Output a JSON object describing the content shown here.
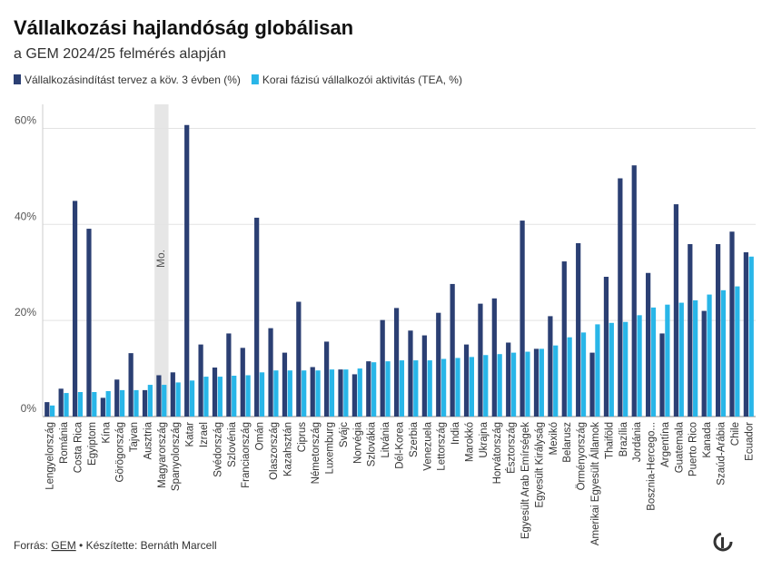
{
  "chart_data": {
    "type": "bar",
    "title": "Vállalkozási hajlandóság globálisan",
    "subtitle": "a GEM 2024/25 felmérés alapján",
    "annotation": "Mo.",
    "source_prefix": "Forrás:",
    "source_link": "GEM",
    "credit": "• Készítette: Bernáth Marcell",
    "categories": [
      "Lengyelország",
      "Románia",
      "Costa Rica",
      "Egyiptom",
      "Kína",
      "Görögország",
      "Tajvan",
      "Ausztria",
      "Magyarország",
      "Spanyolország",
      "Katar",
      "Izrael",
      "Svédország",
      "Szlovénia",
      "Franciaország",
      "Omán",
      "Olaszország",
      "Kazahsztán",
      "Ciprus",
      "Németország",
      "Luxemburg",
      "Svájc",
      "Norvégia",
      "Szlovákia",
      "Litvánia",
      "Dél-Korea",
      "Szerbia",
      "Venezuela",
      "Lettország",
      "India",
      "Marokkó",
      "Ukrajna",
      "Horvátország",
      "Észtország",
      "Egyesült Arab Emírségek",
      "Egyesült Királyság",
      "Mexikó",
      "Belarusz",
      "Örményország",
      "Amerikai Egyesült Államok",
      "Thaiföld",
      "Brazília",
      "Jordánia",
      "Bosznia-Hercego...",
      "Argentína",
      "Guatemala",
      "Puerto Rico",
      "Kanada",
      "Szaúd-Arábia",
      "Chile",
      "Ecuador"
    ],
    "series": [
      {
        "name": "Vállalkozásindítást tervez a köv. 3 évben (%)",
        "color": "#2b3f73",
        "values": [
          3.0,
          5.8,
          44.9,
          39.1,
          3.9,
          7.7,
          13.2,
          5.5,
          8.6,
          9.2,
          60.7,
          15.0,
          10.2,
          17.3,
          14.3,
          41.4,
          18.4,
          13.3,
          23.9,
          10.3,
          15.6,
          9.8,
          8.8,
          11.5,
          20.1,
          22.6,
          17.9,
          16.9,
          21.6,
          27.6,
          15.0,
          23.5,
          24.6,
          15.4,
          40.8,
          14.1,
          20.9,
          32.3,
          36.1,
          13.3,
          29.1,
          49.6,
          52.3,
          29.9,
          17.3,
          44.2,
          35.9,
          22.0,
          35.9,
          38.5,
          34.2
        ]
      },
      {
        "name": "Korai fázisú vállalkozói aktivitás (TEA, %)",
        "color": "#29b6e8",
        "values": [
          2.3,
          4.9,
          5.1,
          5.1,
          5.3,
          5.5,
          5.5,
          6.6,
          6.6,
          7.1,
          7.5,
          8.3,
          8.3,
          8.5,
          8.6,
          9.2,
          9.6,
          9.6,
          9.6,
          9.6,
          9.8,
          9.8,
          10.0,
          11.3,
          11.5,
          11.7,
          11.7,
          11.7,
          12.0,
          12.2,
          12.4,
          12.8,
          13.0,
          13.3,
          13.5,
          14.1,
          14.8,
          16.5,
          17.5,
          19.2,
          19.5,
          19.7,
          21.1,
          22.7,
          23.3,
          23.7,
          24.2,
          25.4,
          26.3,
          27.1,
          33.3
        ]
      }
    ],
    "highlight": "Magyarország",
    "ylim": [
      0,
      65
    ],
    "yticks": [
      {
        "value": 0,
        "label": "0%"
      },
      {
        "value": 20,
        "label": "20%"
      },
      {
        "value": 40,
        "label": "40%"
      },
      {
        "value": 60,
        "label": "60%"
      }
    ],
    "grid": true
  }
}
